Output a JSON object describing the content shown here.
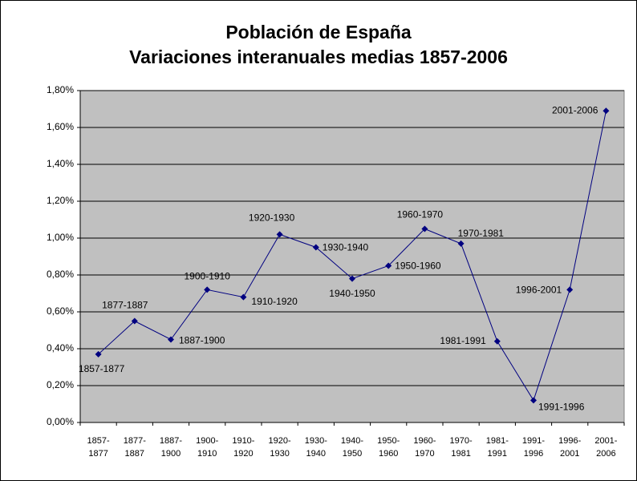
{
  "chart_data": {
    "type": "line",
    "title": "Población de España",
    "subtitle": "Variaciones interanuales medias 1857-2006",
    "categories": [
      "1857-1877",
      "1877-1887",
      "1887-1900",
      "1900-1910",
      "1910-1920",
      "1920-1930",
      "1930-1940",
      "1940-1950",
      "1950-1960",
      "1960-1970",
      "1970-1981",
      "1981-1991",
      "1991-1996",
      "1996-2001",
      "2001-2006"
    ],
    "series": [
      {
        "name": "Población de España",
        "color": "#000080",
        "values": [
          0.37,
          0.55,
          0.45,
          0.72,
          0.68,
          1.02,
          0.95,
          0.78,
          0.85,
          1.05,
          0.97,
          0.44,
          0.12,
          0.72,
          1.69
        ]
      }
    ],
    "ylim": [
      0,
      1.8
    ],
    "yticks": [
      {
        "value": 0,
        "label": "0,00%"
      },
      {
        "value": 0.2,
        "label": "0,20%"
      },
      {
        "value": 0.4,
        "label": "0,40%"
      },
      {
        "value": 0.6,
        "label": "0,60%"
      },
      {
        "value": 0.8,
        "label": "0,80%"
      },
      {
        "value": 1,
        "label": "1,00%"
      },
      {
        "value": 1.2,
        "label": "1,20%"
      },
      {
        "value": 1.4,
        "label": "1,40%"
      },
      {
        "value": 1.6,
        "label": "1,60%"
      },
      {
        "value": 1.8,
        "label": "1,80%"
      }
    ],
    "grid": true,
    "plot_background": "#c0c0c0"
  }
}
